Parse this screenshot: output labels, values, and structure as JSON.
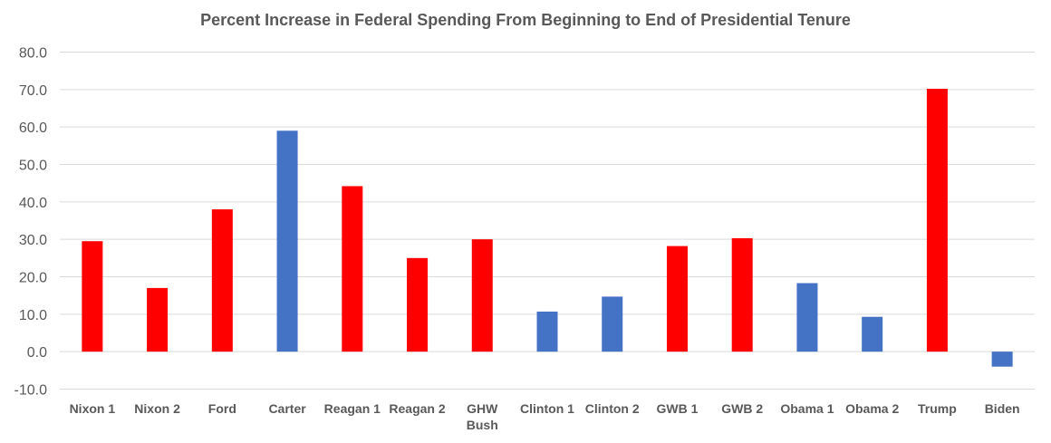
{
  "chart_data": {
    "type": "bar",
    "title": "Percent Increase in Federal Spending From Beginning to End of Presidential Tenure",
    "xlabel": "",
    "ylabel": "",
    "ylim": [
      -10,
      80
    ],
    "yticks": [
      "80.0",
      "70.0",
      "60.0",
      "50.0",
      "40.0",
      "30.0",
      "20.0",
      "10.0",
      "0.0",
      "-10.0"
    ],
    "grid": true,
    "categories": [
      "Nixon 1",
      "Nixon 2",
      "Ford",
      "Carter",
      "Reagan 1",
      "Reagan 2",
      "GHW Bush",
      "Clinton 1",
      "Clinton 2",
      "GWB 1",
      "GWB 2",
      "Obama 1",
      "Obama 2",
      "Trump",
      "Biden"
    ],
    "values": [
      29.5,
      17.0,
      38.0,
      59.0,
      44.2,
      25.0,
      30.0,
      10.7,
      14.7,
      28.2,
      30.3,
      18.3,
      9.3,
      70.2,
      -4.0
    ],
    "colors": [
      "#ff0000",
      "#ff0000",
      "#ff0000",
      "#4472c4",
      "#ff0000",
      "#ff0000",
      "#ff0000",
      "#4472c4",
      "#4472c4",
      "#ff0000",
      "#ff0000",
      "#4472c4",
      "#4472c4",
      "#ff0000",
      "#4472c4"
    ]
  }
}
